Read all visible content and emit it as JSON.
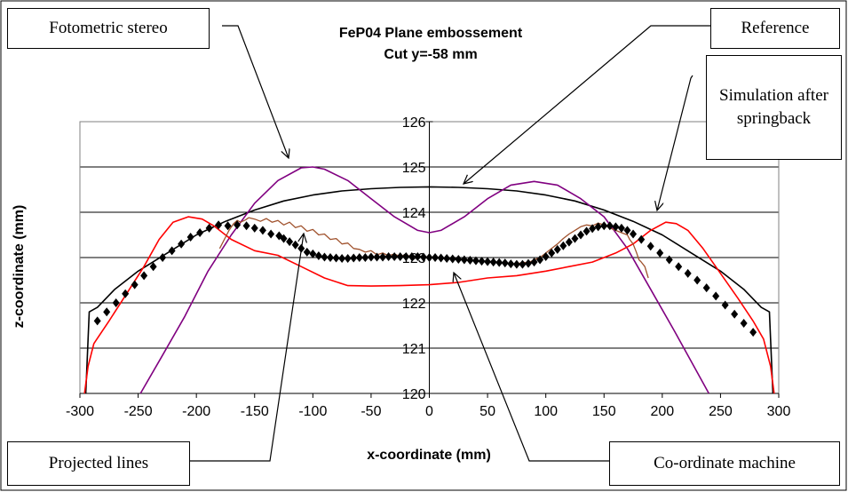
{
  "chart_data": {
    "type": "line",
    "title": "FeP04 Plane embossement",
    "subtitle": "Cut y=-58 mm",
    "xlabel": "x-coordinate (mm)",
    "ylabel": "z-coordinate (mm)",
    "xlim": [
      -300,
      300
    ],
    "ylim": [
      120,
      126
    ],
    "x_ticks": [
      "-300",
      "-250",
      "-200",
      "-150",
      "-100",
      "-50",
      "0",
      "50",
      "100",
      "150",
      "200",
      "250",
      "300"
    ],
    "y_ticks": [
      "120",
      "121",
      "122",
      "123",
      "124",
      "125",
      "126"
    ],
    "grid": "horizontal",
    "legend": "none",
    "callouts": {
      "fotometric": "Fotometric stereo",
      "reference": "Reference",
      "simulation": "Simulation after springback",
      "projected": "Projected lines",
      "coordinate": "Co-ordinate machine"
    },
    "series": [
      {
        "color": "#000000",
        "style": "line",
        "x": [
          -295,
          -292,
          -285,
          -270,
          -250,
          -225,
          -200,
          -175,
          -150,
          -125,
          -100,
          -75,
          -50,
          -25,
          0,
          25,
          50,
          75,
          100,
          125,
          150,
          175,
          200,
          225,
          250,
          270,
          285,
          292,
          295
        ],
        "y": [
          120,
          121.8,
          121.9,
          122.3,
          122.7,
          123.1,
          123.5,
          123.8,
          124.05,
          124.25,
          124.38,
          124.47,
          124.52,
          124.55,
          124.56,
          124.55,
          124.52,
          124.47,
          124.38,
          124.25,
          124.05,
          123.8,
          123.5,
          123.1,
          122.7,
          122.3,
          121.9,
          121.8,
          120
        ]
      },
      {
        "color": "#800080",
        "style": "line",
        "x": [
          -248,
          -230,
          -210,
          -190,
          -170,
          -150,
          -130,
          -110,
          -100,
          -90,
          -70,
          -50,
          -30,
          -10,
          0,
          10,
          30,
          50,
          70,
          90,
          110,
          130,
          150,
          170,
          190,
          210,
          225,
          240
        ],
        "y": [
          120,
          120.8,
          121.7,
          122.7,
          123.5,
          124.2,
          124.7,
          124.98,
          125,
          124.95,
          124.7,
          124.3,
          123.9,
          123.6,
          123.55,
          123.6,
          123.9,
          124.3,
          124.6,
          124.68,
          124.6,
          124.3,
          123.9,
          123.2,
          122.3,
          121.4,
          120.7,
          120
        ]
      },
      {
        "color": "#ff0000",
        "style": "line",
        "x": [
          -296,
          -293,
          -288,
          -275,
          -260,
          -245,
          -232,
          -220,
          -207,
          -195,
          -185,
          -170,
          -150,
          -130,
          -110,
          -90,
          -70,
          -50,
          -25,
          0,
          25,
          50,
          75,
          100,
          120,
          140,
          160,
          175,
          190,
          203,
          212,
          222,
          235,
          250,
          265,
          278,
          287,
          293,
          296
        ],
        "y": [
          120,
          120.6,
          121.1,
          121.6,
          122.2,
          122.8,
          123.4,
          123.78,
          123.9,
          123.85,
          123.7,
          123.4,
          123.15,
          123.05,
          122.8,
          122.55,
          122.38,
          122.37,
          122.38,
          122.4,
          122.45,
          122.55,
          122.6,
          122.7,
          122.8,
          122.9,
          123.1,
          123.3,
          123.6,
          123.78,
          123.75,
          123.6,
          123.2,
          122.65,
          122.1,
          121.6,
          121.2,
          120.6,
          120
        ]
      },
      {
        "color": "#a0522d",
        "style": "jagged",
        "x": [
          -180,
          -175,
          -172,
          -168,
          -165,
          -162,
          -158,
          -155,
          -150,
          -145,
          -140,
          -135,
          -130,
          -125,
          -120,
          -115,
          -110,
          -105,
          -100,
          -95,
          -90,
          -85,
          -80,
          -75,
          -70,
          -65,
          -60,
          -55,
          -50,
          -45,
          -40,
          -35,
          -30,
          -25,
          -20,
          -15,
          -10,
          -5,
          0,
          5,
          10,
          15,
          20,
          25,
          30,
          35,
          40,
          45,
          50,
          55,
          60,
          65,
          70,
          75,
          80,
          85,
          90,
          95,
          100,
          105,
          110,
          115,
          120,
          125,
          130,
          135,
          140,
          145,
          150,
          155,
          160,
          165,
          170,
          172,
          175,
          178,
          180,
          182,
          185,
          188
        ],
        "y": [
          123.2,
          123.45,
          123.6,
          123.75,
          123.82,
          123.78,
          123.83,
          123.88,
          123.85,
          123.8,
          123.86,
          123.78,
          123.82,
          123.72,
          123.78,
          123.66,
          123.7,
          123.58,
          123.62,
          123.5,
          123.52,
          123.4,
          123.42,
          123.3,
          123.32,
          123.2,
          123.18,
          123.12,
          123.15,
          123.06,
          123.1,
          123.04,
          123.08,
          123.02,
          123.07,
          123,
          123.05,
          122.98,
          123.04,
          122.98,
          123.02,
          122.96,
          123,
          122.95,
          122.98,
          122.93,
          122.95,
          122.9,
          122.93,
          122.88,
          122.9,
          122.86,
          122.88,
          122.85,
          122.9,
          122.88,
          122.95,
          123,
          123.1,
          123.2,
          123.3,
          123.42,
          123.52,
          123.6,
          123.68,
          123.72,
          123.7,
          123.76,
          123.72,
          123.65,
          123.6,
          123.55,
          123.5,
          123.4,
          123.3,
          123.1,
          122.95,
          122.9,
          122.8,
          122.55
        ]
      },
      {
        "color": "#000000",
        "style": "markers",
        "x": [
          -285,
          -277,
          -269,
          -261,
          -253,
          -245,
          -237,
          -229,
          -221,
          -213,
          -205,
          -197,
          -189,
          -181,
          -173,
          -165,
          -157,
          -150,
          -143,
          -136,
          -129,
          -125,
          -120,
          -115,
          -110,
          -105,
          -100,
          -95,
          -90,
          -85,
          -80,
          -75,
          -70,
          -65,
          -60,
          -55,
          -50,
          -45,
          -40,
          -35,
          -30,
          -25,
          -20,
          -15,
          -10,
          -5,
          0,
          5,
          10,
          15,
          20,
          25,
          30,
          35,
          40,
          45,
          50,
          55,
          60,
          65,
          70,
          75,
          80,
          85,
          90,
          95,
          100,
          105,
          110,
          115,
          120,
          125,
          130,
          135,
          140,
          145,
          150,
          155,
          160,
          165,
          170,
          175,
          182,
          190,
          198,
          206,
          214,
          222,
          230,
          238,
          246,
          254,
          262,
          270,
          278
        ],
        "y": [
          121.6,
          121.8,
          122,
          122.2,
          122.4,
          122.6,
          122.8,
          123,
          123.15,
          123.3,
          123.45,
          123.55,
          123.65,
          123.72,
          123.7,
          123.72,
          123.7,
          123.65,
          123.6,
          123.52,
          123.48,
          123.42,
          123.35,
          123.28,
          123.2,
          123.12,
          123.08,
          123.04,
          123.01,
          123,
          122.99,
          122.98,
          122.98,
          122.99,
          123,
          123,
          123.01,
          123.01,
          123.01,
          123.02,
          123.02,
          123.02,
          123.02,
          123.02,
          123.02,
          123.01,
          123,
          123,
          122.99,
          122.98,
          122.97,
          122.96,
          122.95,
          122.94,
          122.93,
          122.92,
          122.91,
          122.9,
          122.89,
          122.88,
          122.86,
          122.85,
          122.85,
          122.87,
          122.9,
          122.95,
          123.02,
          123.1,
          123.18,
          123.26,
          123.34,
          123.42,
          123.5,
          123.58,
          123.64,
          123.68,
          123.7,
          123.7,
          123.68,
          123.65,
          123.6,
          123.52,
          123.4,
          123.25,
          123.1,
          122.95,
          122.8,
          122.65,
          122.5,
          122.33,
          122.15,
          121.95,
          121.75,
          121.55,
          121.35
        ]
      }
    ]
  }
}
